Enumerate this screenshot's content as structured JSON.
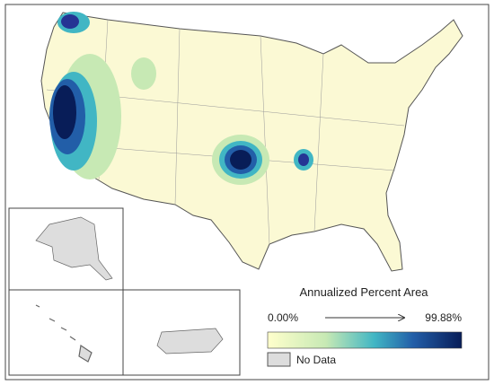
{
  "legend": {
    "title": "Annualized Percent Area",
    "min_label": "0.00%",
    "max_label": "99.88%",
    "no_data": "No Data"
  }
}
